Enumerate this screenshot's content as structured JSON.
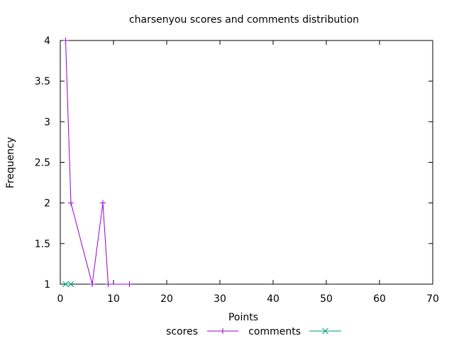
{
  "chart_data": {
    "type": "line",
    "title": "charsenyou scores and comments distribution",
    "xlabel": "Points",
    "ylabel": "Frequency",
    "xlim": [
      0,
      70
    ],
    "ylim": [
      1,
      4
    ],
    "xticks": [
      0,
      10,
      20,
      30,
      40,
      50,
      60,
      70
    ],
    "yticks": [
      1,
      1.5,
      2,
      2.5,
      3,
      3.5,
      4
    ],
    "grid": false,
    "legend_position": "bottom-center",
    "series": [
      {
        "name": "scores",
        "color": "#9400d3",
        "marker": "plus",
        "points": [
          [
            1,
            4
          ],
          [
            2,
            2
          ],
          [
            6,
            1
          ],
          [
            8,
            2
          ],
          [
            9,
            1
          ],
          [
            13,
            1
          ]
        ]
      },
      {
        "name": "comments",
        "color": "#009e73",
        "marker": "cross",
        "points": [
          [
            1,
            1
          ],
          [
            2,
            1
          ]
        ]
      }
    ]
  }
}
